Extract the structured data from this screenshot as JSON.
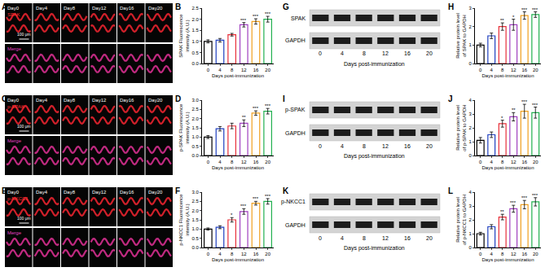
{
  "chart_data": [
    {
      "panel": "B",
      "type": "bar",
      "categories": [
        "0",
        "4",
        "8",
        "12",
        "16",
        "20"
      ],
      "values": [
        1.0,
        1.05,
        1.3,
        1.75,
        1.9,
        2.0
      ],
      "errors": [
        0.07,
        0.08,
        0.06,
        0.1,
        0.12,
        0.13
      ],
      "significance": [
        null,
        null,
        null,
        "***",
        "***",
        "***"
      ],
      "colors": [
        "#000000",
        "#1f3fbf",
        "#e8303a",
        "#a040c0",
        "#f0a020",
        "#22b050"
      ],
      "x_label": "Days post-immunization",
      "y_label": "SPAK Fluorescence\nintensity (A.U.)",
      "ylim": [
        0,
        2.5
      ],
      "yticks": [
        {
          "value": 0,
          "label": "0.0"
        },
        {
          "value": 0.5,
          "label": "0.5"
        },
        {
          "value": 1,
          "label": "1.0"
        },
        {
          "value": 1.5,
          "label": "1.5"
        },
        {
          "value": 2,
          "label": "2.0"
        },
        {
          "value": 2.5,
          "label": "2.5"
        }
      ],
      "grid": false
    },
    {
      "panel": "D",
      "type": "bar",
      "categories": [
        "0",
        "4",
        "8",
        "12",
        "16",
        "20"
      ],
      "values": [
        1.0,
        1.45,
        1.6,
        1.75,
        2.3,
        2.4
      ],
      "errors": [
        0.08,
        0.12,
        0.15,
        0.18,
        0.12,
        0.15
      ],
      "significance": [
        null,
        null,
        null,
        "**",
        "***",
        "***"
      ],
      "colors": [
        "#000000",
        "#1f3fbf",
        "#e8303a",
        "#a040c0",
        "#f0a020",
        "#22b050"
      ],
      "x_label": "Days post-immunization",
      "y_label": "p-SPAK Fluorescence\nintensity (A.U.)",
      "ylim": [
        0,
        3
      ],
      "yticks": [
        {
          "value": 0,
          "label": "0.0"
        },
        {
          "value": 0.5,
          "label": "0.5"
        },
        {
          "value": 1,
          "label": "1.0"
        },
        {
          "value": 1.5,
          "label": "1.5"
        },
        {
          "value": 2,
          "label": "2.0"
        },
        {
          "value": 2.5,
          "label": "2.5"
        },
        {
          "value": 3,
          "label": "3.0"
        }
      ],
      "grid": false
    },
    {
      "panel": "F",
      "type": "bar",
      "categories": [
        "0",
        "4",
        "8",
        "12",
        "16",
        "20"
      ],
      "values": [
        1.0,
        1.1,
        1.5,
        1.95,
        2.4,
        2.5
      ],
      "errors": [
        0.06,
        0.08,
        0.12,
        0.15,
        0.1,
        0.15
      ],
      "significance": [
        null,
        null,
        "*",
        "***",
        "***",
        "***"
      ],
      "colors": [
        "#000000",
        "#1f3fbf",
        "#e8303a",
        "#a040c0",
        "#f0a020",
        "#22b050"
      ],
      "x_label": "Days post-immunization",
      "y_label": "p-NKCC1 Fluorescence\nintensity (A.U.)",
      "ylim": [
        0,
        3
      ],
      "yticks": [
        {
          "value": 0,
          "label": "0.0"
        },
        {
          "value": 0.5,
          "label": "0.5"
        },
        {
          "value": 1,
          "label": "1.0"
        },
        {
          "value": 1.5,
          "label": "1.5"
        },
        {
          "value": 2,
          "label": "2.0"
        },
        {
          "value": 2.5,
          "label": "2.5"
        },
        {
          "value": 3,
          "label": "3.0"
        }
      ],
      "grid": false
    },
    {
      "panel": "H",
      "type": "bar",
      "categories": [
        "0",
        "4",
        "8",
        "12",
        "16",
        "20"
      ],
      "values": [
        1.0,
        1.5,
        2.0,
        2.1,
        2.6,
        2.65
      ],
      "errors": [
        0.1,
        0.15,
        0.2,
        0.3,
        0.2,
        0.15
      ],
      "significance": [
        null,
        null,
        "**",
        "*",
        "***",
        "***"
      ],
      "colors": [
        "#000000",
        "#1f3fbf",
        "#e8303a",
        "#a040c0",
        "#f0a020",
        "#22b050"
      ],
      "x_label": "Days post-immunization",
      "y_label": "Relative protein level\nof SPAK to GAPDH",
      "ylim": [
        0,
        3
      ],
      "yticks": [
        0,
        1,
        2,
        3
      ],
      "grid": false
    },
    {
      "panel": "J",
      "type": "bar",
      "categories": [
        "0",
        "4",
        "8",
        "12",
        "16",
        "20"
      ],
      "values": [
        1.1,
        1.5,
        2.3,
        2.8,
        3.2,
        3.1
      ],
      "errors": [
        0.2,
        0.2,
        0.25,
        0.3,
        0.5,
        0.4
      ],
      "significance": [
        null,
        null,
        "*",
        "**",
        "***",
        "***"
      ],
      "colors": [
        "#000000",
        "#1f3fbf",
        "#e8303a",
        "#a040c0",
        "#f0a020",
        "#22b050"
      ],
      "x_label": "Days post-immunization",
      "y_label": "Relative protein level\nof p-SPAK to GAPDH",
      "ylim": [
        0,
        4
      ],
      "yticks": [
        0,
        1,
        2,
        3,
        4
      ],
      "grid": false
    },
    {
      "panel": "L",
      "type": "bar",
      "categories": [
        "0",
        "4",
        "8",
        "12",
        "16",
        "20"
      ],
      "values": [
        1.0,
        1.5,
        2.2,
        2.8,
        3.1,
        3.3
      ],
      "errors": [
        0.1,
        0.15,
        0.2,
        0.25,
        0.3,
        0.3
      ],
      "significance": [
        null,
        null,
        "**",
        "***",
        "***",
        "***"
      ],
      "colors": [
        "#000000",
        "#1f3fbf",
        "#e8303a",
        "#a040c0",
        "#f0a020",
        "#22b050"
      ],
      "x_label": "Days post-immunization",
      "y_label": "Relative protein level\nof p-NKCC1 to GAPDH",
      "ylim": [
        0,
        4
      ],
      "yticks": [
        0,
        1,
        2,
        3,
        4
      ],
      "grid": false
    }
  ],
  "micrographs": [
    {
      "panel": "A",
      "rows": [
        "SPAK",
        "Merge"
      ],
      "columns": [
        "Day0",
        "Day4",
        "Day8",
        "Day12",
        "Day16",
        "Day20"
      ],
      "scale_bar": "100 μm"
    },
    {
      "panel": "C",
      "rows": [
        "p-SPAK",
        "Merge"
      ],
      "columns": [
        "Day0",
        "Day4",
        "Day8",
        "Day12",
        "Day16",
        "Day20"
      ],
      "scale_bar": "100 μm"
    },
    {
      "panel": "E",
      "rows": [
        "p-NKCC1",
        "Merge"
      ],
      "columns": [
        "Day0",
        "Day4",
        "Day8",
        "Day12",
        "Day16",
        "Day20"
      ],
      "scale_bar": "100 μm"
    }
  ],
  "blots": [
    {
      "panel": "G",
      "bands": [
        "SPAK",
        "GAPDH"
      ],
      "lanes": [
        "0",
        "4",
        "8",
        "12",
        "16",
        "20"
      ],
      "x_label": "Days post-immunization"
    },
    {
      "panel": "I",
      "bands": [
        "p-SPAK",
        "GAPDH"
      ],
      "lanes": [
        "0",
        "4",
        "8",
        "12",
        "16",
        "20"
      ],
      "x_label": "Days post-immunization"
    },
    {
      "panel": "K",
      "bands": [
        "p-NKCC1",
        "GAPDH"
      ],
      "lanes": [
        "0",
        "4",
        "8",
        "12",
        "16",
        "20"
      ],
      "x_label": "Days post-immunization"
    }
  ]
}
